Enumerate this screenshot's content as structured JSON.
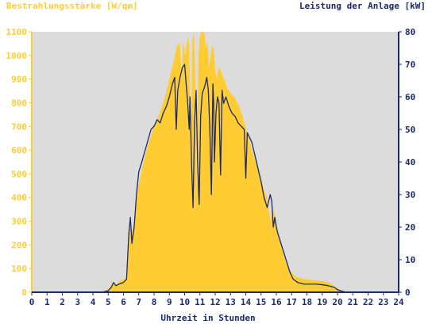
{
  "chart_data": {
    "type": "area",
    "left_axis_label": "Bestrahlungsstärke [W/qm]",
    "right_axis_label": "Leistung der Anlage [kW]",
    "xlabel": "Uhrzeit in Stunden",
    "xlim": [
      0,
      24
    ],
    "ylim_left": [
      0,
      1100
    ],
    "ylim_right": [
      0,
      80
    ],
    "x_ticks": [
      "0",
      "1",
      "2",
      "3",
      "4",
      "5",
      "6",
      "7",
      "8",
      "9",
      "10",
      "11",
      "12",
      "13",
      "14",
      "15",
      "16",
      "17",
      "18",
      "19",
      "20",
      "21",
      "22",
      "23",
      "24"
    ],
    "y_ticks_left": [
      "0",
      "100",
      "200",
      "300",
      "400",
      "500",
      "600",
      "700",
      "800",
      "900",
      "1000",
      "1100"
    ],
    "y_ticks_right": [
      "0",
      "10",
      "20",
      "30",
      "40",
      "50",
      "60",
      "70",
      "80"
    ],
    "grid": false,
    "colors": {
      "plot_background": "#dcdcdc",
      "irradiance": "#ffcc33",
      "power": "#1a2a6c",
      "left_axis_text": "#ffcc33",
      "right_axis_text": "#1a2a6c"
    },
    "series": [
      {
        "name": "Bestrahlungsstärke [W/qm]",
        "axis": "left",
        "style": "area",
        "x": [
          0,
          4.6,
          5.0,
          5.3,
          5.5,
          5.8,
          6.2,
          6.4,
          6.5,
          6.7,
          6.9,
          7.2,
          7.6,
          8.0,
          8.4,
          8.7,
          9.0,
          9.3,
          9.5,
          9.7,
          9.8,
          9.9,
          10.05,
          10.2,
          10.3,
          10.4,
          10.5,
          10.6,
          10.7,
          10.8,
          10.9,
          11.0,
          11.1,
          11.2,
          11.3,
          11.4,
          11.5,
          11.6,
          11.7,
          11.8,
          11.9,
          12.0,
          12.1,
          12.2,
          12.3,
          12.4,
          12.5,
          12.6,
          12.7,
          12.8,
          13.0,
          13.3,
          13.6,
          13.9,
          14.2,
          14.4,
          14.6,
          14.9,
          15.2,
          15.4,
          15.6,
          15.8,
          15.9,
          16.1,
          16.3,
          16.6,
          16.9,
          17.2,
          17.5,
          18.0,
          18.5,
          19.0,
          19.5,
          19.9,
          20.2,
          20.5,
          21,
          24
        ],
        "values": [
          0,
          0,
          10,
          40,
          30,
          50,
          60,
          280,
          240,
          300,
          420,
          520,
          620,
          700,
          760,
          820,
          900,
          980,
          1040,
          1050,
          900,
          1060,
          1000,
          1080,
          1050,
          500,
          1060,
          1100,
          900,
          400,
          1000,
          1080,
          1100,
          1100,
          1090,
          1030,
          1060,
          950,
          1000,
          1040,
          1030,
          940,
          900,
          940,
          950,
          930,
          910,
          900,
          880,
          860,
          840,
          820,
          780,
          720,
          650,
          600,
          560,
          500,
          430,
          400,
          300,
          350,
          330,
          260,
          200,
          130,
          90,
          70,
          60,
          55,
          50,
          48,
          40,
          20,
          5,
          0,
          0,
          0
        ]
      },
      {
        "name": "Leistung der Anlage [kW]",
        "axis": "right",
        "style": "line",
        "x": [
          0,
          4.6,
          5.0,
          5.2,
          5.35,
          5.5,
          5.7,
          6.0,
          6.2,
          6.35,
          6.45,
          6.55,
          6.7,
          6.85,
          7.0,
          7.2,
          7.5,
          7.8,
          8.0,
          8.2,
          8.4,
          8.6,
          8.8,
          9.0,
          9.2,
          9.35,
          9.45,
          9.55,
          9.7,
          9.85,
          10.0,
          10.1,
          10.2,
          10.3,
          10.35,
          10.45,
          10.55,
          10.65,
          10.75,
          10.85,
          10.95,
          11.05,
          11.15,
          11.3,
          11.45,
          11.55,
          11.65,
          11.75,
          11.85,
          11.9,
          11.95,
          12.05,
          12.15,
          12.25,
          12.35,
          12.45,
          12.55,
          12.7,
          12.9,
          13.1,
          13.3,
          13.5,
          13.7,
          13.9,
          14.0,
          14.1,
          14.2,
          14.4,
          14.6,
          14.8,
          15.0,
          15.2,
          15.4,
          15.6,
          15.7,
          15.8,
          15.9,
          16.0,
          16.1,
          16.3,
          16.5,
          16.7,
          16.9,
          17.1,
          17.4,
          17.8,
          18.2,
          18.6,
          19.0,
          19.4,
          19.8,
          20.0,
          20.3,
          20.6,
          24
        ],
        "values": [
          0,
          0,
          0.5,
          1.5,
          3,
          2,
          2.5,
          3,
          4,
          18,
          23,
          15,
          20,
          30,
          37,
          40,
          45,
          50,
          51,
          53,
          52,
          55,
          57,
          60,
          64,
          66,
          50,
          62,
          66,
          69,
          70,
          64,
          58,
          50,
          60,
          40,
          26,
          52,
          62,
          40,
          27,
          54,
          61,
          63,
          66,
          62,
          50,
          30,
          64,
          58,
          40,
          55,
          60,
          58,
          36,
          62,
          58,
          60,
          57,
          55,
          54,
          52,
          51,
          50,
          35,
          49,
          48,
          46,
          42,
          38,
          34,
          29,
          26,
          30,
          28,
          20,
          23,
          20,
          18,
          15,
          12,
          9,
          6,
          4,
          3,
          2.5,
          2.5,
          2.5,
          2.3,
          2,
          1.5,
          0.8,
          0.3,
          0,
          0
        ]
      }
    ]
  }
}
